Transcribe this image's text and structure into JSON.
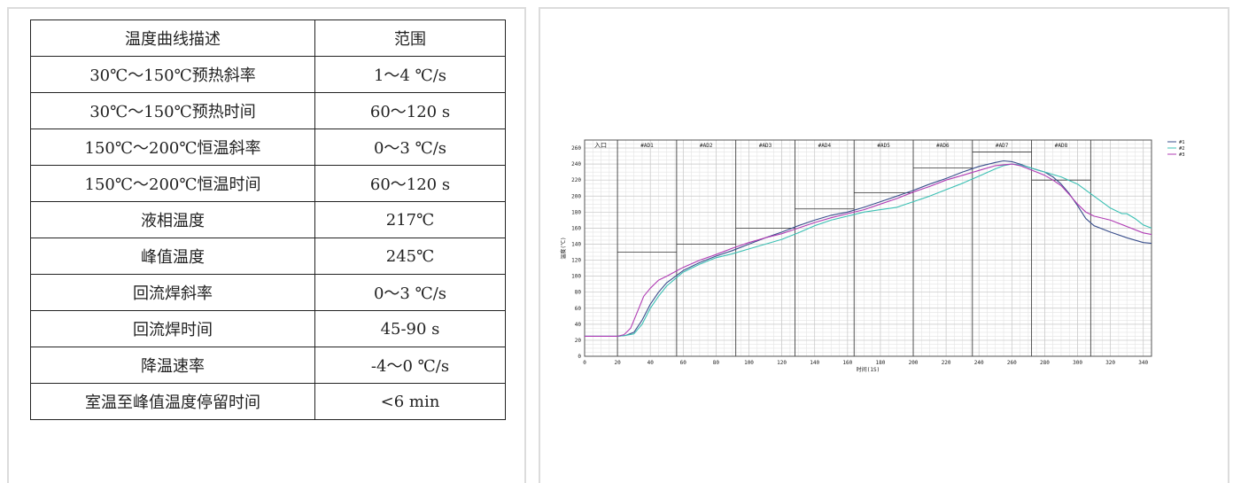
{
  "table": {
    "header": [
      "温度曲线描述",
      "范围"
    ],
    "rows": [
      [
        "30℃～150℃预热斜率",
        "1～4 ℃/s"
      ],
      [
        "30℃～150℃预热时间",
        "60～120 s"
      ],
      [
        "150℃～200℃恒温斜率",
        "0～3 ℃/s"
      ],
      [
        "150℃～200℃恒温时间",
        "60～120 s"
      ],
      [
        "液相温度",
        "217℃"
      ],
      [
        "峰值温度",
        "245℃"
      ],
      [
        "回流焊斜率",
        "0～3 ℃/s"
      ],
      [
        "回流焊时间",
        "45-90 s"
      ],
      [
        "降温速率",
        "-4～0 ℃/s"
      ],
      [
        "室温至峰值温度停留时间",
        "<6 min"
      ]
    ]
  },
  "chart_data": {
    "type": "line",
    "xlabel": "时间(1S)",
    "ylabel": "温度(℃)",
    "xlim": [
      0,
      345
    ],
    "ylim": [
      0,
      270
    ],
    "xticks": [
      0,
      20,
      40,
      60,
      80,
      100,
      120,
      140,
      160,
      180,
      200,
      220,
      240,
      260,
      280,
      300,
      320,
      340
    ],
    "yticks": [
      0,
      20,
      40,
      60,
      80,
      100,
      120,
      140,
      160,
      180,
      200,
      220,
      240,
      260
    ],
    "grid": true,
    "legend_position": "top-right",
    "zones": [
      {
        "label": "入口",
        "start": 0,
        "end": 20,
        "setpoint": null
      },
      {
        "label": "#AD1",
        "start": 20,
        "end": 56,
        "setpoint": 130
      },
      {
        "label": "#AD2",
        "start": 56,
        "end": 92,
        "setpoint": 140
      },
      {
        "label": "#AD3",
        "start": 92,
        "end": 128,
        "setpoint": 160
      },
      {
        "label": "#AD4",
        "start": 128,
        "end": 164,
        "setpoint": 184
      },
      {
        "label": "#AD5",
        "start": 164,
        "end": 200,
        "setpoint": 204
      },
      {
        "label": "#AD6",
        "start": 200,
        "end": 236,
        "setpoint": 235
      },
      {
        "label": "#AD7",
        "start": 236,
        "end": 272,
        "setpoint": 255
      },
      {
        "label": "#AD8",
        "start": 272,
        "end": 308,
        "setpoint": 220
      }
    ],
    "series": [
      {
        "name": "#1",
        "color": "#3a4f8c",
        "x": [
          0,
          20,
          25,
          30,
          35,
          40,
          45,
          50,
          60,
          70,
          80,
          90,
          100,
          110,
          120,
          130,
          140,
          150,
          160,
          170,
          180,
          190,
          200,
          210,
          220,
          230,
          240,
          250,
          255,
          260,
          265,
          270,
          280,
          285,
          290,
          295,
          300,
          305,
          310,
          320,
          330,
          340,
          345
        ],
        "y": [
          25,
          25,
          26,
          30,
          45,
          65,
          80,
          92,
          107,
          117,
          125,
          132,
          140,
          148,
          155,
          163,
          170,
          176,
          180,
          186,
          193,
          200,
          207,
          215,
          222,
          230,
          237,
          242,
          244,
          243,
          240,
          236,
          230,
          224,
          215,
          203,
          188,
          172,
          163,
          155,
          148,
          142,
          141
        ]
      },
      {
        "name": "#2",
        "color": "#3cc0b4",
        "x": [
          0,
          20,
          25,
          30,
          35,
          40,
          45,
          50,
          60,
          70,
          80,
          90,
          100,
          110,
          120,
          130,
          140,
          150,
          160,
          170,
          180,
          190,
          200,
          210,
          220,
          230,
          240,
          250,
          255,
          260,
          265,
          270,
          280,
          290,
          300,
          310,
          320,
          325,
          327,
          330,
          335,
          340,
          345
        ],
        "y": [
          25,
          25,
          26,
          28,
          40,
          60,
          75,
          88,
          105,
          115,
          123,
          128,
          134,
          140,
          146,
          154,
          163,
          170,
          175,
          180,
          183,
          186,
          193,
          200,
          208,
          216,
          225,
          234,
          238,
          240,
          239,
          236,
          230,
          224,
          215,
          200,
          185,
          180,
          178,
          178,
          172,
          164,
          160
        ]
      },
      {
        "name": "#3",
        "color": "#b03cb4",
        "x": [
          0,
          20,
          24,
          28,
          32,
          36,
          40,
          45,
          50,
          60,
          70,
          80,
          90,
          100,
          110,
          120,
          130,
          140,
          150,
          160,
          170,
          180,
          190,
          200,
          210,
          220,
          230,
          240,
          250,
          260,
          265,
          270,
          280,
          285,
          290,
          295,
          300,
          305,
          310,
          320,
          330,
          340,
          345
        ],
        "y": [
          25,
          25,
          27,
          35,
          55,
          75,
          85,
          95,
          100,
          111,
          120,
          127,
          135,
          142,
          148,
          153,
          160,
          167,
          173,
          178,
          183,
          190,
          197,
          205,
          212,
          220,
          226,
          232,
          238,
          240,
          238,
          234,
          226,
          220,
          213,
          202,
          190,
          180,
          175,
          170,
          162,
          154,
          152
        ]
      }
    ]
  }
}
